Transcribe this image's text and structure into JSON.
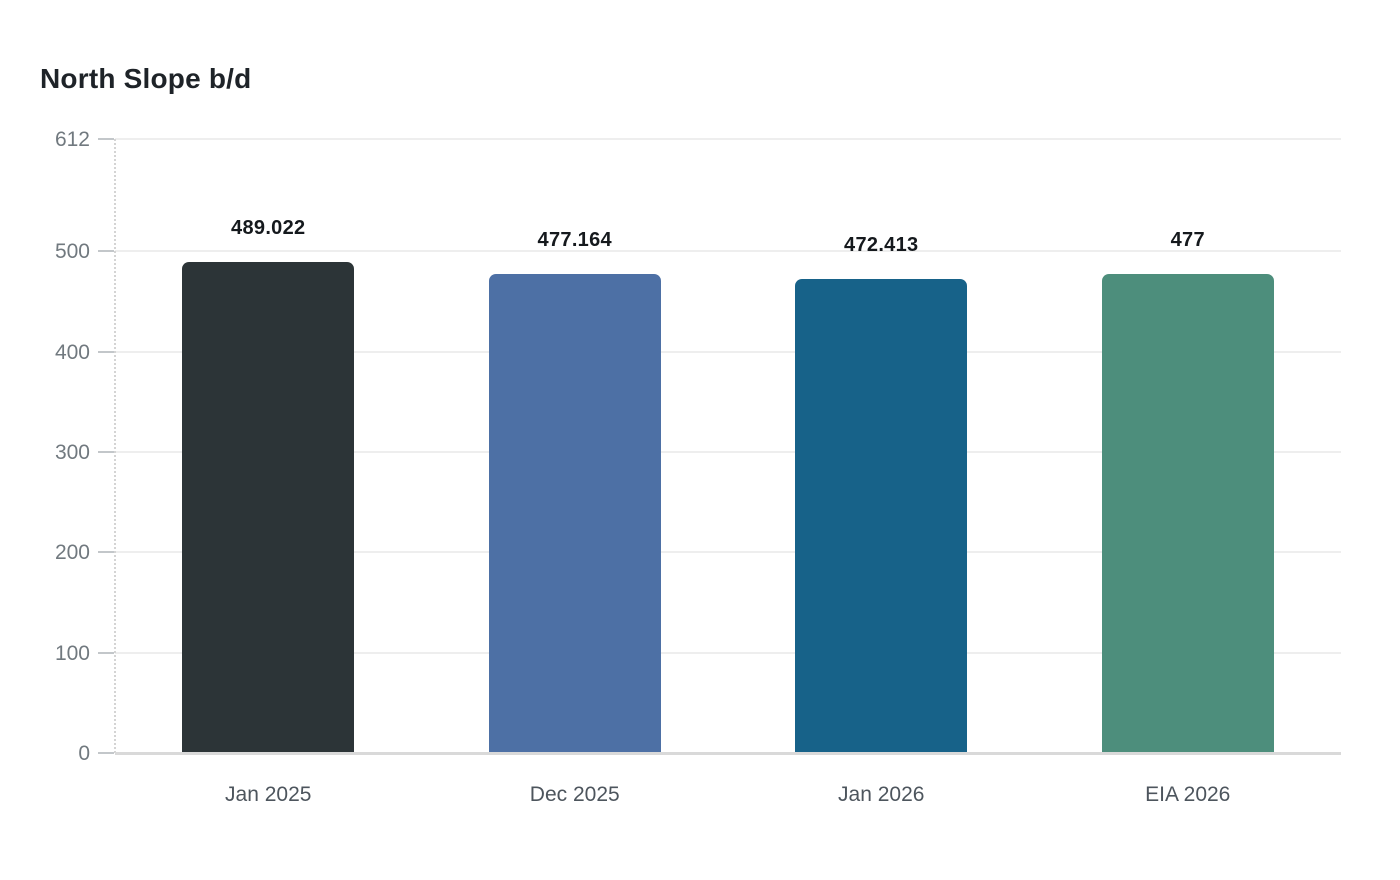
{
  "page": {
    "background": "#ffffff"
  },
  "chart_data": {
    "type": "bar",
    "title": "North Slope b/d",
    "categories": [
      "Jan 2025",
      "Dec 2025",
      "Jan 2026",
      "EIA 2026"
    ],
    "values": [
      489.022,
      477.164,
      472.413,
      477
    ],
    "value_labels": [
      "489.022",
      "477.164",
      "472.413",
      "477"
    ],
    "bar_colors": [
      "#2c3437",
      "#4d70a5",
      "#176289",
      "#4d8e7c"
    ],
    "y_ticks": [
      0,
      100,
      200,
      300,
      400,
      500,
      612
    ],
    "ylim": [
      0,
      612
    ],
    "xlabel": "",
    "ylabel": "",
    "grid": true,
    "legend_position": "none",
    "colors": {
      "title_text": "#1e2328",
      "y_tick_text": "#71797f",
      "x_tick_text": "#4d555d",
      "value_label_text": "#15191d",
      "gridline": "#eeeeee",
      "baseline": "#d9d9d9",
      "tick_mark": "#c3c7ca",
      "y_axis_dotted": "#d4d4d4"
    }
  }
}
